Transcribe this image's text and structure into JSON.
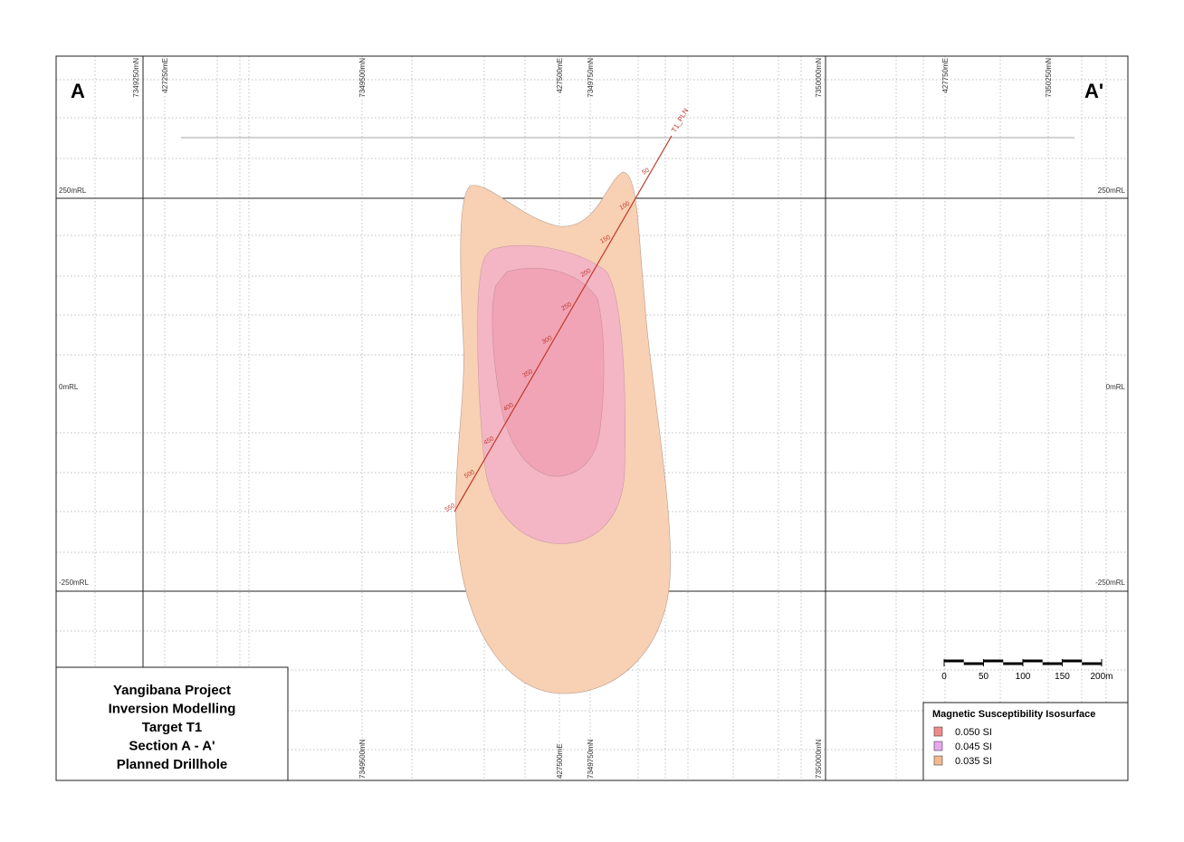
{
  "corners": {
    "left": "A",
    "right": "A'"
  },
  "top_labels": [
    "7349250mN",
    "427250mE",
    "7349500mN",
    "427500mE",
    "7349750mN",
    "7350000mN",
    "427750mE",
    "7350250mN"
  ],
  "bottom_labels": [
    "7349500mN",
    "427500mE",
    "7349750mN",
    "7350000mN"
  ],
  "elevation_labels": [
    "250mRL",
    "0mRL",
    "-250mRL"
  ],
  "drillhole": {
    "name": "T1_PLN",
    "depth_labels": [
      50,
      100,
      150,
      200,
      250,
      300,
      350,
      400,
      450,
      500,
      550
    ]
  },
  "scale_bar": {
    "labels": [
      "0",
      "50",
      "100",
      "150",
      "200m"
    ]
  },
  "title_block": [
    "Yangibana Project",
    "Inversion Modelling",
    "Target T1",
    "Section A - A'",
    "Planned Drillhole"
  ],
  "legend": {
    "title": "Magnetic Susceptibility Isosurface",
    "items": [
      {
        "label": "0.050 SI",
        "color": "#f08a8a"
      },
      {
        "label": "0.045 SI",
        "color": "#e8a6f0"
      },
      {
        "label": "0.035 SI",
        "color": "#f7b88e"
      }
    ]
  }
}
